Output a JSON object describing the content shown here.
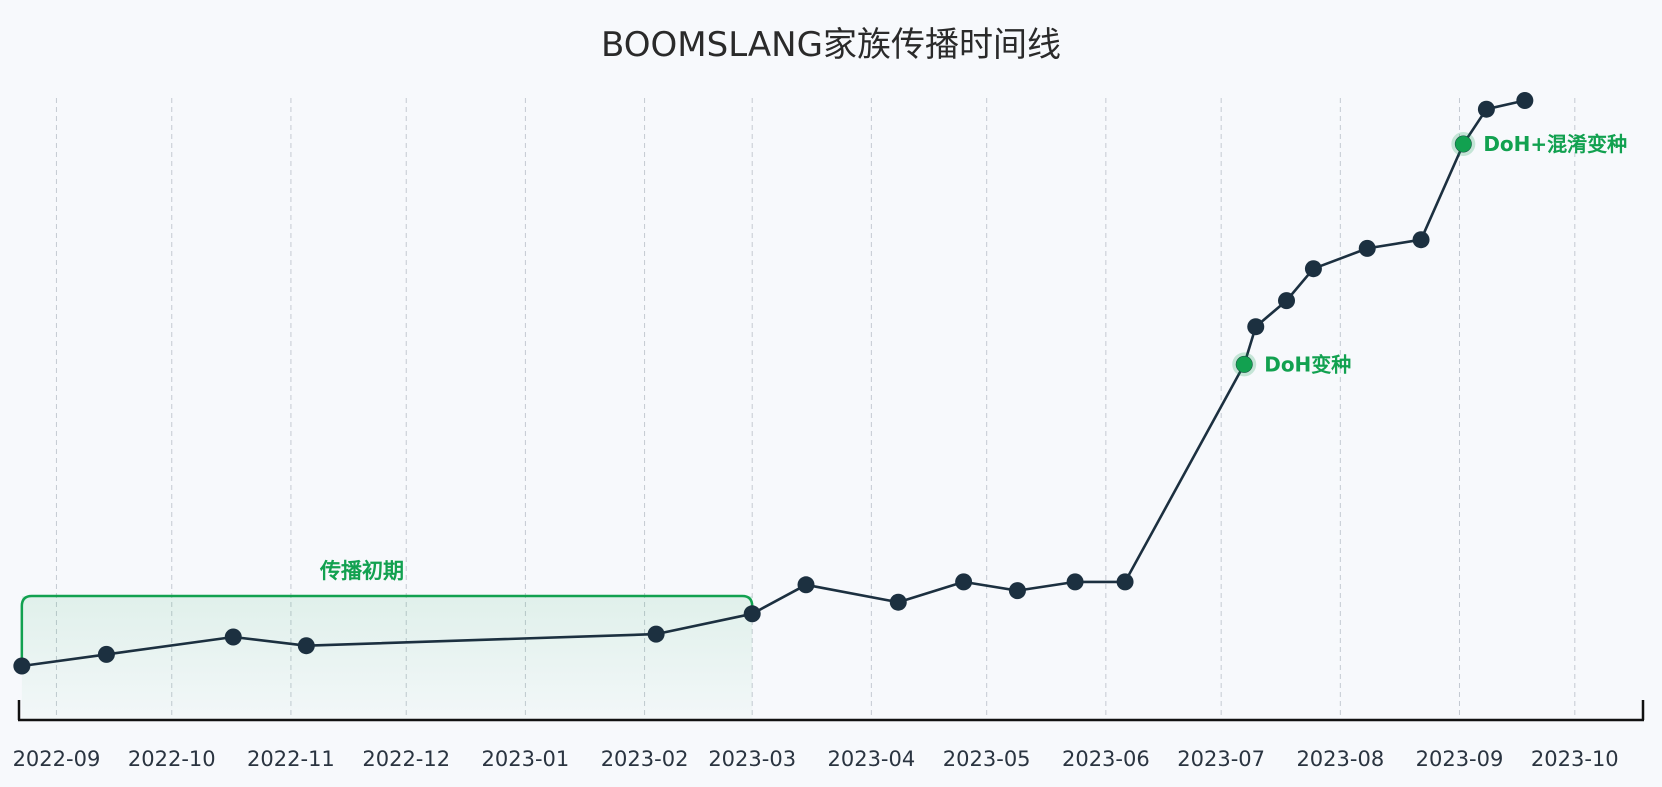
{
  "chart_data": {
    "type": "line",
    "title": "BOOMSLANG家族传播时间线",
    "xlabel": "",
    "ylabel": "",
    "x_range": [
      "2022-08-22",
      "2023-10-19"
    ],
    "y_range": [
      0,
      100
    ],
    "grid": {
      "vertical": true,
      "horizontal": false
    },
    "x_ticks": [
      "2022-09",
      "2022-10",
      "2022-11",
      "2022-12",
      "2023-01",
      "2023-02",
      "2023-03",
      "2023-04",
      "2023-05",
      "2023-06",
      "2023-07",
      "2023-08",
      "2023-09",
      "2023-10"
    ],
    "series": [
      {
        "color": "#1c3040",
        "points": [
          {
            "x": "2022-08-23",
            "y": 5
          },
          {
            "x": "2022-09-14",
            "y": 7
          },
          {
            "x": "2022-10-17",
            "y": 10
          },
          {
            "x": "2022-11-05",
            "y": 8.5
          },
          {
            "x": "2023-02-04",
            "y": 10.5
          },
          {
            "x": "2023-03-01",
            "y": 14
          },
          {
            "x": "2023-03-15",
            "y": 19
          },
          {
            "x": "2023-04-08",
            "y": 16
          },
          {
            "x": "2023-04-25",
            "y": 19.5
          },
          {
            "x": "2023-05-09",
            "y": 18
          },
          {
            "x": "2023-05-24",
            "y": 19.5
          },
          {
            "x": "2023-06-06",
            "y": 19.5
          },
          {
            "x": "2023-07-07",
            "y": 57
          },
          {
            "x": "2023-07-10",
            "y": 63.5
          },
          {
            "x": "2023-07-18",
            "y": 68
          },
          {
            "x": "2023-07-25",
            "y": 73.5
          },
          {
            "x": "2023-08-08",
            "y": 77
          },
          {
            "x": "2023-08-22",
            "y": 78.5
          },
          {
            "x": "2023-09-02",
            "y": 95
          },
          {
            "x": "2023-09-08",
            "y": 101
          },
          {
            "x": "2023-09-18",
            "y": 102.5
          }
        ]
      }
    ],
    "annotations": [
      {
        "x": "2023-07-07",
        "y": 57,
        "label": "DoH变种",
        "color": "#12a150"
      },
      {
        "x": "2023-09-02",
        "y": 95,
        "label": "DoH+混淆变种",
        "color": "#12a150"
      }
    ],
    "range_annotation": {
      "label": "传播初期",
      "x_start": "2022-08-23",
      "x_end": "2023-03-01",
      "color": "#12a150"
    }
  }
}
